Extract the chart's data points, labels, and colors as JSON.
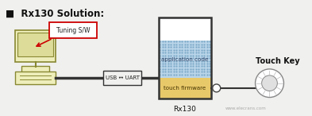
{
  "title": "Rx130 Solution:",
  "title_bullet": "■",
  "bg_color": "#f0f0ee",
  "tuning_sw_label": "Tuning S/W",
  "usb_uart_label": "USB ↔ UART",
  "app_code_label": "application code",
  "touch_fw_label": "touch firmware",
  "chip_label": "Rx130",
  "touch_key_label": "Touch Key",
  "watermark_text": "www.elecrans.com",
  "app_color": "#b8d4e8",
  "app_dot_color": "#7aafc8",
  "fw_color": "#e8c96a",
  "pc_fill": "#eeeebb",
  "pc_border": "#888833",
  "screen_fill": "#dddd99",
  "chip_border": "#333333",
  "line_color": "#333333",
  "tuning_border": "#cc0000",
  "arrow_color": "#cc0000"
}
